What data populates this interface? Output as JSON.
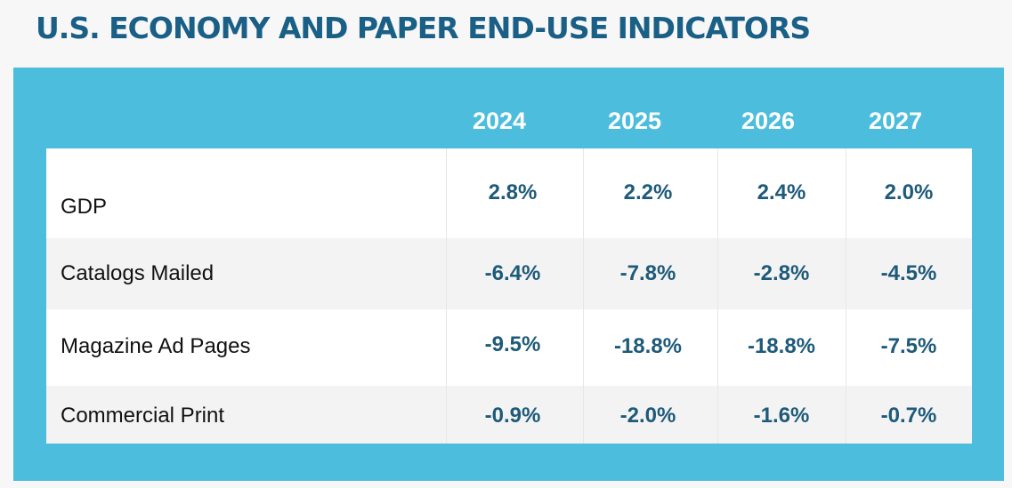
{
  "title": "U.S. ECONOMY AND PAPER END-USE INDICATORS",
  "table": {
    "columns": [
      "2024",
      "2025",
      "2026",
      "2027"
    ],
    "rows": [
      {
        "label": "GDP",
        "values": [
          "2.8%",
          "2.2%",
          "2.4%",
          "2.0%"
        ]
      },
      {
        "label": "Catalogs Mailed",
        "values": [
          "-6.4%",
          "-7.8%",
          "-2.8%",
          "-4.5%"
        ]
      },
      {
        "label": "Magazine Ad Pages",
        "values": [
          "-9.5%",
          "-18.8%",
          "-18.8%",
          "-7.5%"
        ]
      },
      {
        "label": "Commercial Print",
        "values": [
          "-0.9%",
          "-2.0%",
          "-1.6%",
          "-0.7%"
        ]
      }
    ]
  },
  "colors": {
    "title": "#1a5f86",
    "panel": "#4dbddd",
    "value_text": "#1e5a7a",
    "shaded_row": "#f3f3f3"
  }
}
